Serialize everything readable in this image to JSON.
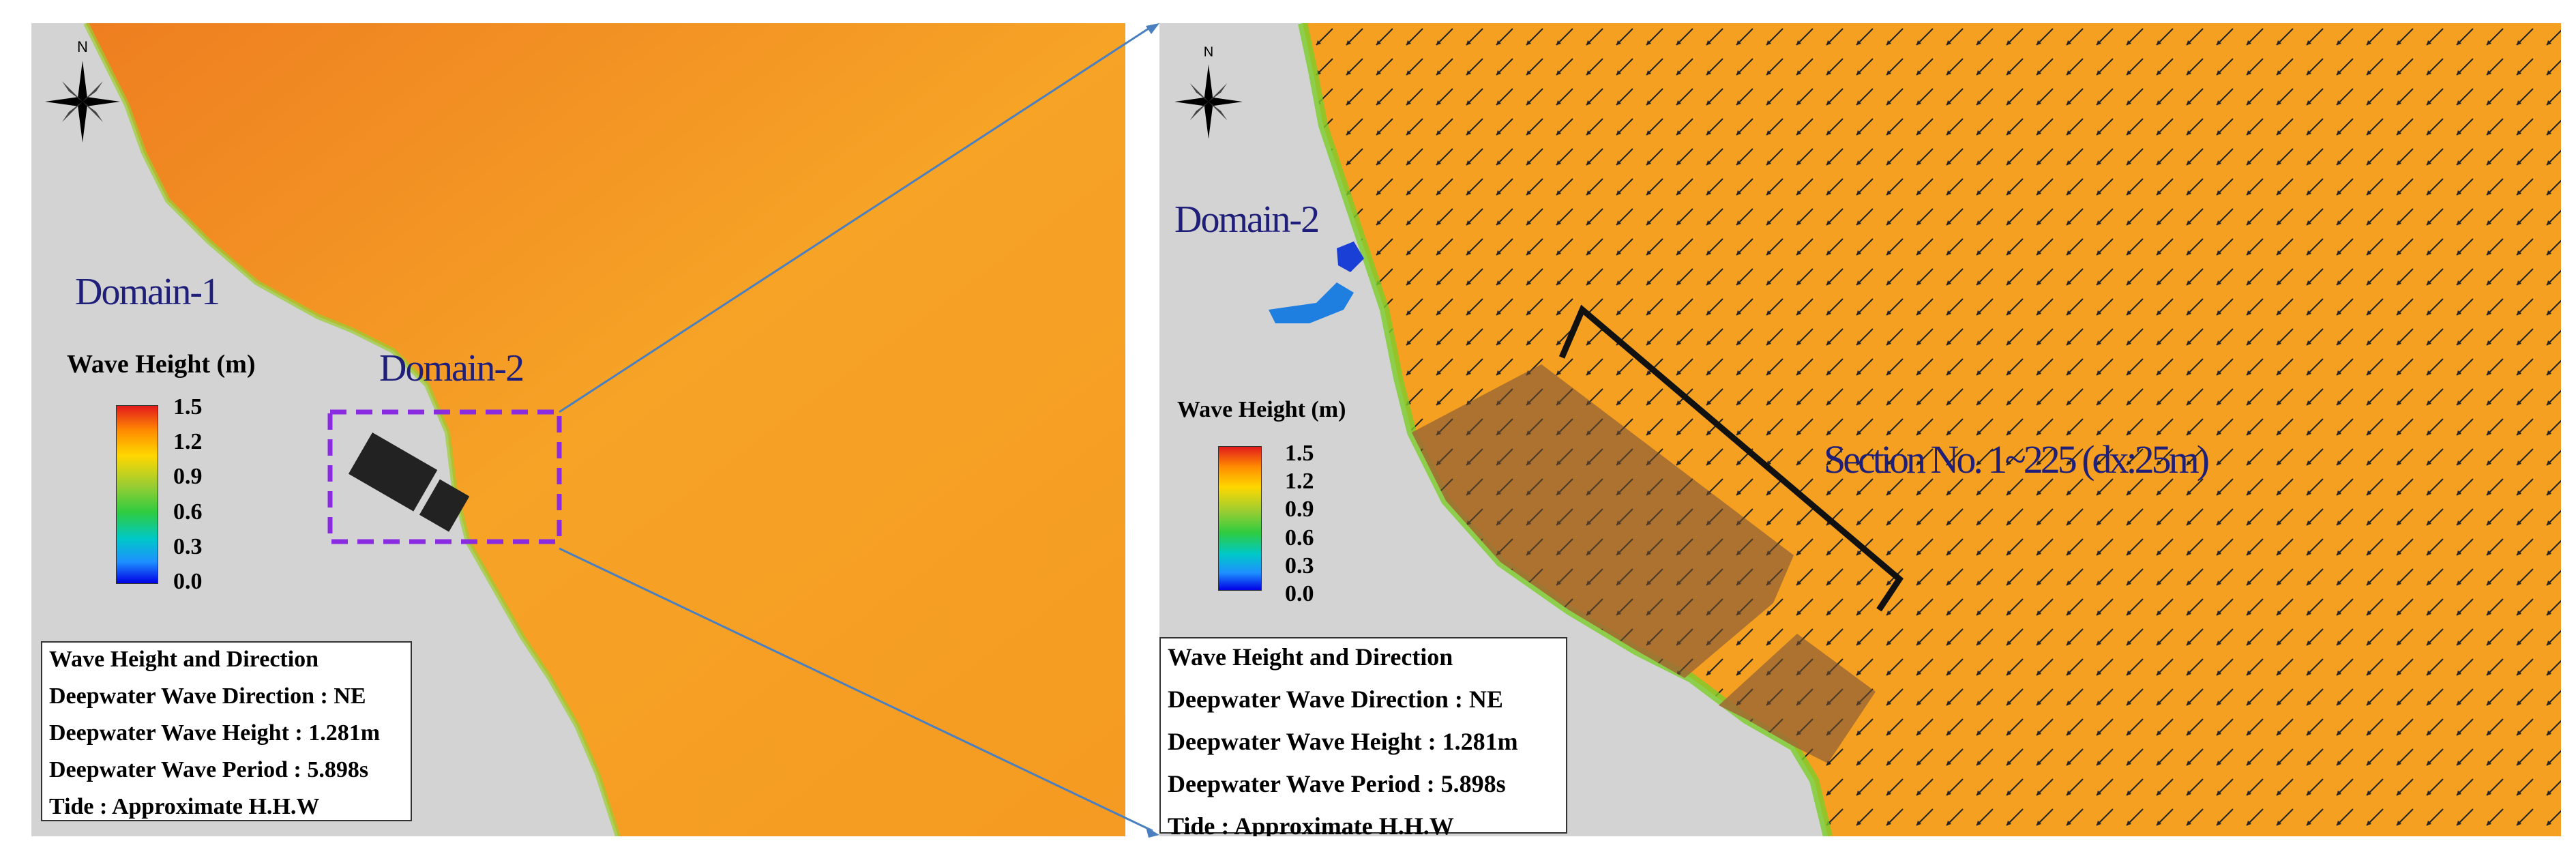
{
  "left_panel": {
    "domain_label": "Domain-1",
    "inset_label": "Domain-2",
    "legend": {
      "title": "Wave Height (m)",
      "ticks": [
        "1.5",
        "1.2",
        "0.9",
        "0.6",
        "0.3",
        "0.0"
      ]
    },
    "info": {
      "line1": "Wave Height and Direction",
      "line2": "Deepwater Wave Direction : NE",
      "line3": "Deepwater Wave Height : 1.281m",
      "line4": "Deepwater Wave Period : 5.898s",
      "line5": "Tide : Approximate H.H.W"
    },
    "compass_letter": "N"
  },
  "right_panel": {
    "domain_label": "Domain-2",
    "section_label": "Section No. 1~225 (dx:25m)",
    "legend": {
      "title": "Wave Height (m)",
      "ticks": [
        "1.5",
        "1.2",
        "0.9",
        "0.6",
        "0.3",
        "0.0"
      ]
    },
    "info": {
      "line1": "Wave Height and Direction",
      "line2": "Deepwater Wave Direction : NE",
      "line3": "Deepwater Wave Height : 1.281m",
      "line4": "Deepwater Wave Period : 5.898s",
      "line5": "Tide : Approximate H.H.W"
    },
    "compass_letter": "N"
  },
  "colors": {
    "land": "#d3d3d3",
    "sea": "#f5a020",
    "sea_deep": "#f08a1e",
    "inset_box": "#8a2be2",
    "zoom_line": "#4a7fc0",
    "label_text": "#1f1f7a"
  }
}
